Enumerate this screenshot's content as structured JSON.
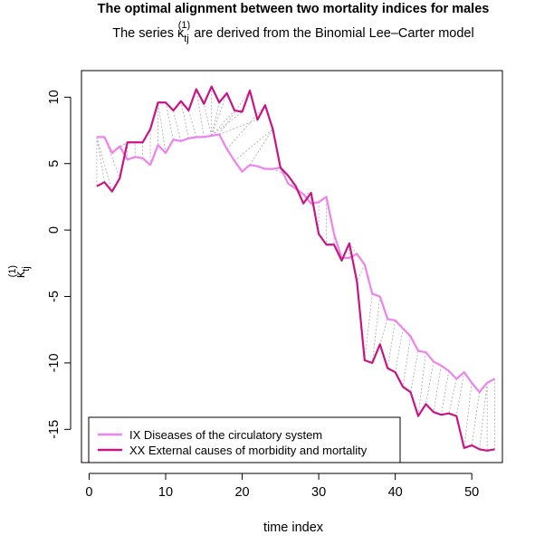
{
  "chart_data": {
    "type": "line",
    "title": "The optimal alignment between two mortality indices for males",
    "subtitle": {
      "prefix": "The series ",
      "symbol": "κ",
      "subscript": "tj",
      "superscript": "(1)",
      "suffix": " are derived from the Binomial Lee–Carter model"
    },
    "xlabel": "time index",
    "ylabel": {
      "symbol": "κ",
      "subscript": "tj",
      "superscript": "(1)"
    },
    "xlim": [
      -1,
      54
    ],
    "ylim": [
      -17.5,
      12
    ],
    "xticks": [
      0,
      10,
      20,
      30,
      40,
      50
    ],
    "yticks": [
      10,
      5,
      0,
      -5,
      -10,
      -15
    ],
    "legend_position": "bottom-left",
    "series": [
      {
        "name": "IX Diseases of the circulatory system",
        "color": "#EE82EE",
        "values": [
          7.0,
          7.0,
          5.8,
          6.3,
          5.3,
          5.5,
          5.4,
          4.9,
          6.4,
          5.8,
          6.8,
          6.7,
          6.9,
          7.0,
          7.0,
          7.1,
          7.2,
          6.1,
          5.2,
          4.4,
          4.9,
          4.8,
          4.6,
          4.6,
          4.7,
          3.5,
          3.1,
          2.7,
          2.0,
          2.1,
          2.5,
          -0.3,
          -2.1,
          -2.1,
          -1.8,
          -2.6,
          -4.8,
          -5.0,
          -6.7,
          -6.8,
          -7.4,
          -8.0,
          -9.1,
          -9.2,
          -9.9,
          -10.2,
          -10.6,
          -11.2,
          -10.7,
          -11.5,
          -12.2,
          -11.5,
          -11.2
        ]
      },
      {
        "name": "XX External causes of morbidity and mortality",
        "color": "#C71585",
        "values": [
          3.3,
          3.6,
          2.9,
          3.9,
          6.6,
          6.6,
          6.6,
          7.6,
          9.6,
          9.6,
          9.0,
          9.7,
          9.0,
          10.6,
          9.5,
          10.8,
          9.6,
          10.3,
          9.0,
          8.9,
          10.5,
          8.3,
          9.4,
          7.6,
          4.7,
          4.1,
          3.3,
          2.0,
          2.8,
          -0.3,
          -1.1,
          -1.1,
          -2.3,
          -1.0,
          -3.9,
          -9.8,
          -10.0,
          -8.6,
          -10.4,
          -10.7,
          -11.8,
          -12.2,
          -14.0,
          -13.1,
          -13.7,
          -13.9,
          -13.8,
          -14.0,
          -16.4,
          -16.2,
          -16.5,
          -16.6,
          -16.5
        ]
      }
    ],
    "x": [
      1,
      2,
      3,
      4,
      5,
      6,
      7,
      8,
      9,
      10,
      11,
      12,
      13,
      14,
      15,
      16,
      17,
      18,
      19,
      20,
      21,
      22,
      23,
      24,
      25,
      26,
      27,
      28,
      29,
      30,
      31,
      32,
      33,
      34,
      35,
      36,
      37,
      38,
      39,
      40,
      41,
      42,
      43,
      44,
      45,
      46,
      47,
      48,
      49,
      50,
      51,
      52,
      53
    ],
    "alignment": {
      "color": "#A8A8A8",
      "dash": "2,2",
      "pairs": [
        [
          1,
          1
        ],
        [
          1,
          2
        ],
        [
          1,
          3
        ],
        [
          2,
          4
        ],
        [
          3,
          5
        ],
        [
          4,
          5
        ],
        [
          5,
          5
        ],
        [
          6,
          6
        ],
        [
          7,
          7
        ],
        [
          8,
          8
        ],
        [
          9,
          9
        ],
        [
          10,
          9
        ],
        [
          11,
          10
        ],
        [
          12,
          11
        ],
        [
          13,
          12
        ],
        [
          14,
          13
        ],
        [
          15,
          14
        ],
        [
          16,
          15
        ],
        [
          16,
          16
        ],
        [
          16,
          17
        ],
        [
          16,
          18
        ],
        [
          16,
          19
        ],
        [
          16,
          20
        ],
        [
          17,
          21
        ],
        [
          17,
          22
        ],
        [
          18,
          23
        ],
        [
          19,
          24
        ],
        [
          21,
          24
        ],
        [
          23,
          25
        ],
        [
          24,
          26
        ],
        [
          26,
          27
        ],
        [
          27,
          28
        ],
        [
          28,
          29
        ],
        [
          29,
          29
        ],
        [
          30,
          30
        ],
        [
          31,
          31
        ],
        [
          32,
          32
        ],
        [
          33,
          33
        ],
        [
          34,
          34
        ],
        [
          35,
          34
        ],
        [
          36,
          35
        ],
        [
          37,
          36
        ],
        [
          38,
          37
        ],
        [
          39,
          38
        ],
        [
          40,
          39
        ],
        [
          41,
          40
        ],
        [
          42,
          41
        ],
        [
          43,
          42
        ],
        [
          44,
          43
        ],
        [
          45,
          44
        ],
        [
          46,
          45
        ],
        [
          47,
          46
        ],
        [
          48,
          47
        ],
        [
          49,
          48
        ],
        [
          50,
          49
        ],
        [
          51,
          50
        ],
        [
          52,
          51
        ],
        [
          52,
          52
        ],
        [
          53,
          53
        ]
      ]
    }
  }
}
